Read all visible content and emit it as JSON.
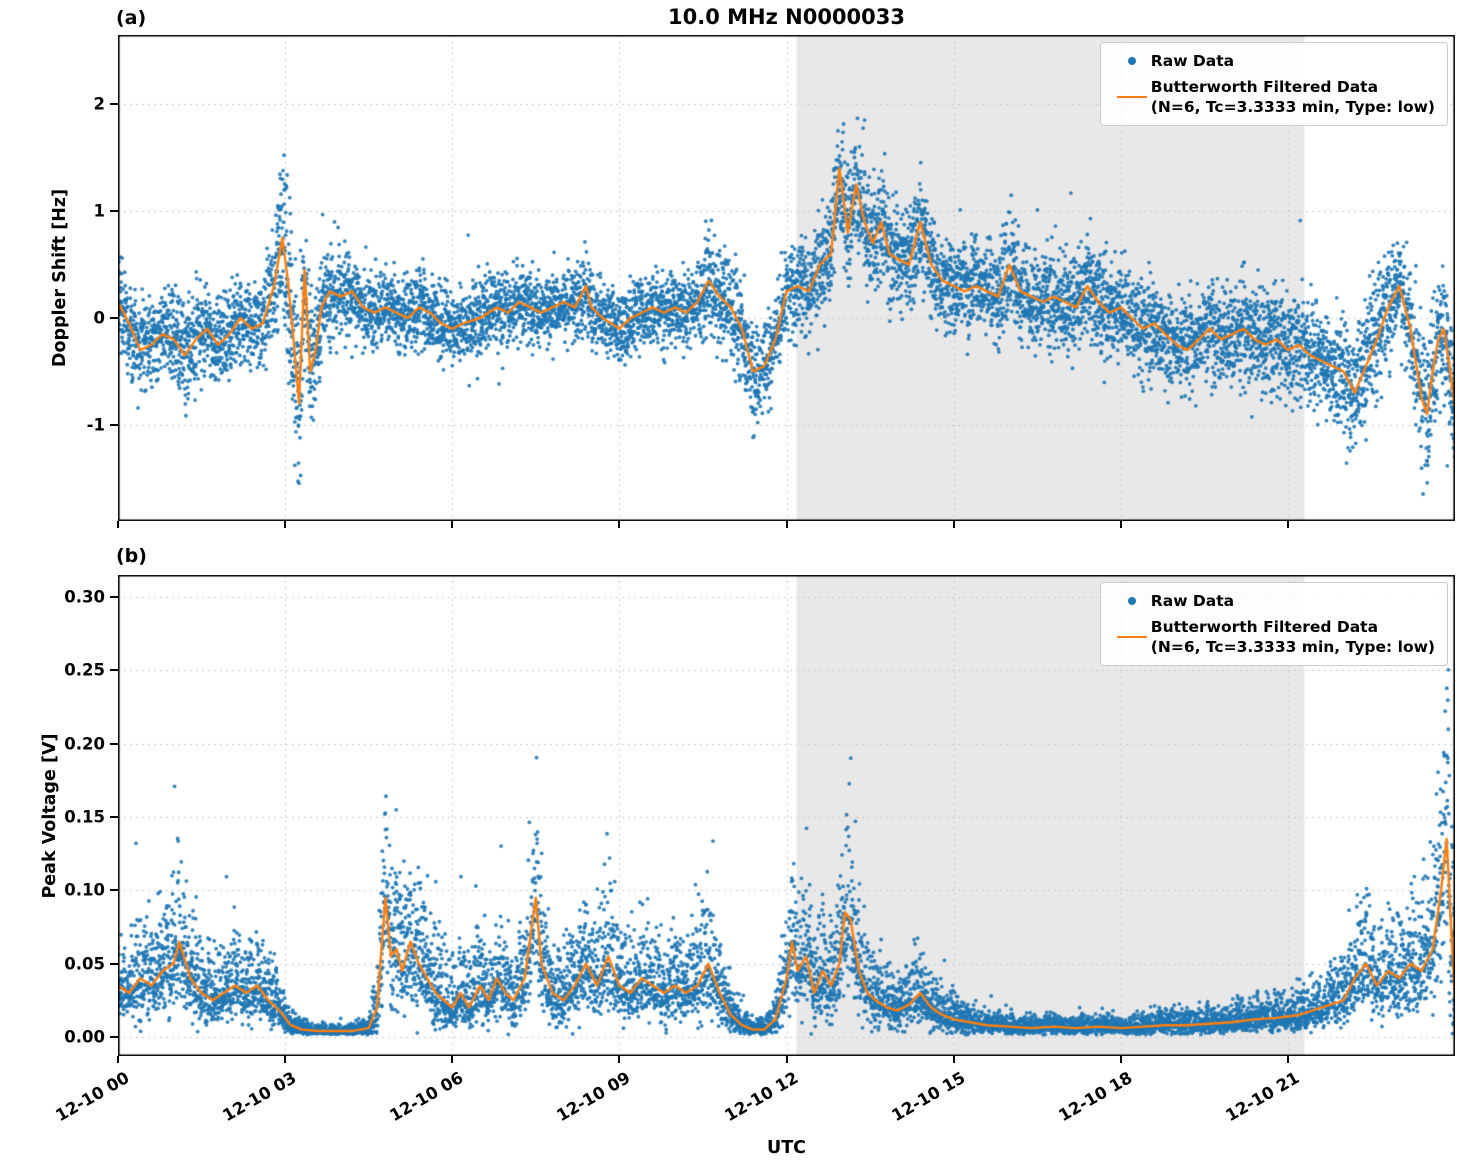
{
  "title": "10.0 MHz N0000033",
  "xlabel": "UTC",
  "legend": {
    "raw_label": "Raw Data",
    "filtered_label": "Butterworth Filtered Data",
    "filtered_sublabel": "(N=6, Tc=3.3333 min, Type: low)"
  },
  "colors": {
    "raw": "#1f77b4",
    "filtered": "#ff7f0e",
    "shade": "#e8e8e8",
    "grid": "#c9c9c9"
  },
  "x_axis": {
    "label": "UTC",
    "range_hours": [
      0,
      24
    ],
    "tick_hours": [
      0,
      3,
      6,
      9,
      12,
      15,
      18,
      21
    ],
    "tick_labels": [
      "12-10 00",
      "12-10 03",
      "12-10 06",
      "12-10 09",
      "12-10 12",
      "12-10 15",
      "12-10 18",
      "12-10 21"
    ]
  },
  "shade_region": {
    "x_start_hour": 12.18,
    "x_end_hour": 21.3
  },
  "chart_data": [
    {
      "type": "scatter",
      "panel_label": "(a)",
      "ylabel": "Doppler Shift [Hz]",
      "ylim": [
        -1.9,
        2.65
      ],
      "y_tick_values": [
        -1,
        0,
        1,
        2
      ],
      "y_tick_labels": [
        "-1",
        "0",
        "1",
        "2"
      ],
      "grid": true,
      "legend_position": "upper right",
      "series_names": [
        "Raw Data",
        "Butterworth Filtered Data"
      ],
      "skew_up": 1.0,
      "skew_down": 1.0,
      "raw_clamp": [
        -1.82,
        2.56
      ],
      "filtered_points": [
        [
          0,
          0.15,
          0.35
        ],
        [
          0.2,
          -0.05,
          0.4
        ],
        [
          0.4,
          -0.3,
          0.4
        ],
        [
          0.6,
          -0.25,
          0.35
        ],
        [
          0.8,
          -0.15,
          0.35
        ],
        [
          1,
          -0.2,
          0.4
        ],
        [
          1.2,
          -0.35,
          0.45
        ],
        [
          1.4,
          -0.2,
          0.4
        ],
        [
          1.6,
          -0.1,
          0.35
        ],
        [
          1.8,
          -0.25,
          0.4
        ],
        [
          2,
          -0.15,
          0.35
        ],
        [
          2.2,
          0,
          0.3
        ],
        [
          2.4,
          -0.1,
          0.3
        ],
        [
          2.6,
          -0.05,
          0.35
        ],
        [
          2.8,
          0.3,
          0.5
        ],
        [
          2.95,
          0.75,
          0.8
        ],
        [
          3.05,
          0.35,
          0.9
        ],
        [
          3.15,
          -0.2,
          0.9
        ],
        [
          3.25,
          -0.8,
          0.8
        ],
        [
          3.35,
          0.45,
          0.7
        ],
        [
          3.45,
          -0.5,
          0.6
        ],
        [
          3.55,
          -0.3,
          0.5
        ],
        [
          3.65,
          0.1,
          0.45
        ],
        [
          3.8,
          0.25,
          0.4
        ],
        [
          4,
          0.2,
          0.35
        ],
        [
          4.2,
          0.25,
          0.3
        ],
        [
          4.4,
          0.1,
          0.3
        ],
        [
          4.6,
          0.05,
          0.3
        ],
        [
          4.8,
          0.1,
          0.3
        ],
        [
          5,
          0.05,
          0.3
        ],
        [
          5.2,
          0,
          0.3
        ],
        [
          5.4,
          0.1,
          0.3
        ],
        [
          5.6,
          0.05,
          0.3
        ],
        [
          5.8,
          -0.05,
          0.3
        ],
        [
          6,
          -0.1,
          0.3
        ],
        [
          6.2,
          -0.05,
          0.3
        ],
        [
          6.5,
          0,
          0.3
        ],
        [
          6.8,
          0.1,
          0.3
        ],
        [
          7,
          0.05,
          0.3
        ],
        [
          7.2,
          0.15,
          0.3
        ],
        [
          7.4,
          0.1,
          0.3
        ],
        [
          7.6,
          0.05,
          0.3
        ],
        [
          7.8,
          0.1,
          0.3
        ],
        [
          8,
          0.15,
          0.3
        ],
        [
          8.2,
          0.1,
          0.3
        ],
        [
          8.4,
          0.3,
          0.35
        ],
        [
          8.5,
          0.1,
          0.3
        ],
        [
          8.7,
          0,
          0.3
        ],
        [
          9,
          -0.1,
          0.3
        ],
        [
          9.2,
          0,
          0.3
        ],
        [
          9.4,
          0.05,
          0.3
        ],
        [
          9.6,
          0.1,
          0.3
        ],
        [
          9.8,
          0.05,
          0.3
        ],
        [
          10,
          0.1,
          0.3
        ],
        [
          10.2,
          0.05,
          0.3
        ],
        [
          10.4,
          0.15,
          0.35
        ],
        [
          10.6,
          0.35,
          0.5
        ],
        [
          10.8,
          0.2,
          0.45
        ],
        [
          11,
          0.1,
          0.4
        ],
        [
          11.2,
          -0.1,
          0.4
        ],
        [
          11.4,
          -0.5,
          0.45
        ],
        [
          11.6,
          -0.45,
          0.4
        ],
        [
          11.8,
          -0.2,
          0.35
        ],
        [
          12,
          0.25,
          0.35
        ],
        [
          12.2,
          0.3,
          0.4
        ],
        [
          12.4,
          0.25,
          0.4
        ],
        [
          12.6,
          0.5,
          0.45
        ],
        [
          12.8,
          0.6,
          0.5
        ],
        [
          12.95,
          1.4,
          0.45
        ],
        [
          13.1,
          0.8,
          0.5
        ],
        [
          13.25,
          1.25,
          0.5
        ],
        [
          13.4,
          0.9,
          0.5
        ],
        [
          13.55,
          0.7,
          0.45
        ],
        [
          13.7,
          0.9,
          0.45
        ],
        [
          13.85,
          0.6,
          0.4
        ],
        [
          14,
          0.55,
          0.4
        ],
        [
          14.2,
          0.5,
          0.4
        ],
        [
          14.4,
          0.9,
          0.4
        ],
        [
          14.6,
          0.5,
          0.4
        ],
        [
          14.8,
          0.35,
          0.4
        ],
        [
          15,
          0.3,
          0.4
        ],
        [
          15.2,
          0.25,
          0.4
        ],
        [
          15.4,
          0.3,
          0.4
        ],
        [
          15.6,
          0.25,
          0.4
        ],
        [
          15.8,
          0.2,
          0.4
        ],
        [
          16,
          0.5,
          0.45
        ],
        [
          16.2,
          0.25,
          0.4
        ],
        [
          16.4,
          0.2,
          0.4
        ],
        [
          16.6,
          0.15,
          0.4
        ],
        [
          16.8,
          0.2,
          0.4
        ],
        [
          17,
          0.15,
          0.4
        ],
        [
          17.2,
          0.1,
          0.4
        ],
        [
          17.4,
          0.3,
          0.4
        ],
        [
          17.6,
          0.15,
          0.4
        ],
        [
          17.8,
          0.05,
          0.4
        ],
        [
          18,
          0.1,
          0.4
        ],
        [
          18.2,
          0,
          0.4
        ],
        [
          18.4,
          -0.1,
          0.4
        ],
        [
          18.6,
          -0.05,
          0.4
        ],
        [
          18.8,
          -0.15,
          0.4
        ],
        [
          19,
          -0.25,
          0.4
        ],
        [
          19.2,
          -0.3,
          0.4
        ],
        [
          19.4,
          -0.2,
          0.4
        ],
        [
          19.6,
          -0.1,
          0.4
        ],
        [
          19.8,
          -0.2,
          0.4
        ],
        [
          20,
          -0.15,
          0.4
        ],
        [
          20.2,
          -0.1,
          0.4
        ],
        [
          20.4,
          -0.2,
          0.4
        ],
        [
          20.6,
          -0.25,
          0.4
        ],
        [
          20.8,
          -0.2,
          0.4
        ],
        [
          21,
          -0.3,
          0.45
        ],
        [
          21.2,
          -0.25,
          0.45
        ],
        [
          21.4,
          -0.35,
          0.45
        ],
        [
          21.6,
          -0.4,
          0.45
        ],
        [
          21.8,
          -0.45,
          0.45
        ],
        [
          22,
          -0.5,
          0.5
        ],
        [
          22.2,
          -0.7,
          0.55
        ],
        [
          22.4,
          -0.45,
          0.5
        ],
        [
          22.6,
          -0.2,
          0.45
        ],
        [
          22.8,
          0.1,
          0.4
        ],
        [
          23,
          0.3,
          0.4
        ],
        [
          23.2,
          -0.1,
          0.5
        ],
        [
          23.4,
          -0.75,
          0.6
        ],
        [
          23.5,
          -0.9,
          0.65
        ],
        [
          23.6,
          -0.5,
          0.55
        ],
        [
          23.7,
          -0.2,
          0.5
        ],
        [
          23.8,
          -0.1,
          0.45
        ],
        [
          23.9,
          -0.45,
          0.5
        ],
        [
          24,
          -0.85,
          0.55
        ]
      ]
    },
    {
      "type": "scatter",
      "panel_label": "(b)",
      "ylabel": "Peak Voltage [V]",
      "ylim": [
        -0.013,
        0.315
      ],
      "y_tick_values": [
        0,
        0.05,
        0.1,
        0.15,
        0.2,
        0.25,
        0.3
      ],
      "y_tick_labels": [
        "0.00",
        "0.05",
        "0.10",
        "0.15",
        "0.20",
        "0.25",
        "0.30"
      ],
      "grid": true,
      "legend_position": "upper right",
      "series_names": [
        "Raw Data",
        "Butterworth Filtered Data"
      ],
      "skew_up": 1.45,
      "skew_down": 0.75,
      "raw_clamp": [
        0.0015,
        0.308
      ],
      "filtered_points": [
        [
          0,
          0.035,
          0.025
        ],
        [
          0.2,
          0.03,
          0.022
        ],
        [
          0.4,
          0.04,
          0.028
        ],
        [
          0.6,
          0.035,
          0.025
        ],
        [
          0.8,
          0.045,
          0.032
        ],
        [
          1,
          0.05,
          0.036
        ],
        [
          1.1,
          0.065,
          0.045
        ],
        [
          1.3,
          0.04,
          0.03
        ],
        [
          1.5,
          0.03,
          0.025
        ],
        [
          1.7,
          0.025,
          0.02
        ],
        [
          1.9,
          0.03,
          0.022
        ],
        [
          2.1,
          0.035,
          0.025
        ],
        [
          2.3,
          0.03,
          0.022
        ],
        [
          2.5,
          0.035,
          0.025
        ],
        [
          2.7,
          0.025,
          0.02
        ],
        [
          2.9,
          0.018,
          0.015
        ],
        [
          3.1,
          0.008,
          0.006
        ],
        [
          3.3,
          0.005,
          0.004
        ],
        [
          3.6,
          0.004,
          0.003
        ],
        [
          3.9,
          0.004,
          0.003
        ],
        [
          4.2,
          0.004,
          0.003
        ],
        [
          4.5,
          0.006,
          0.005
        ],
        [
          4.65,
          0.02,
          0.025
        ],
        [
          4.8,
          0.095,
          0.05
        ],
        [
          4.9,
          0.055,
          0.045
        ],
        [
          5,
          0.06,
          0.042
        ],
        [
          5.1,
          0.045,
          0.038
        ],
        [
          5.25,
          0.065,
          0.04
        ],
        [
          5.4,
          0.05,
          0.038
        ],
        [
          5.55,
          0.04,
          0.033
        ],
        [
          5.7,
          0.03,
          0.028
        ],
        [
          5.85,
          0.025,
          0.022
        ],
        [
          6,
          0.02,
          0.018
        ],
        [
          6.15,
          0.03,
          0.024
        ],
        [
          6.3,
          0.02,
          0.018
        ],
        [
          6.5,
          0.035,
          0.028
        ],
        [
          6.65,
          0.025,
          0.022
        ],
        [
          6.8,
          0.04,
          0.028
        ],
        [
          6.95,
          0.03,
          0.024
        ],
        [
          7.1,
          0.025,
          0.02
        ],
        [
          7.3,
          0.04,
          0.03
        ],
        [
          7.5,
          0.095,
          0.055
        ],
        [
          7.6,
          0.05,
          0.04
        ],
        [
          7.8,
          0.03,
          0.026
        ],
        [
          8,
          0.025,
          0.022
        ],
        [
          8.2,
          0.035,
          0.026
        ],
        [
          8.4,
          0.05,
          0.034
        ],
        [
          8.6,
          0.035,
          0.026
        ],
        [
          8.8,
          0.055,
          0.038
        ],
        [
          9,
          0.035,
          0.026
        ],
        [
          9.2,
          0.03,
          0.024
        ],
        [
          9.4,
          0.04,
          0.03
        ],
        [
          9.6,
          0.035,
          0.026
        ],
        [
          9.8,
          0.03,
          0.024
        ],
        [
          10,
          0.035,
          0.026
        ],
        [
          10.2,
          0.03,
          0.024
        ],
        [
          10.4,
          0.035,
          0.026
        ],
        [
          10.6,
          0.05,
          0.036
        ],
        [
          10.8,
          0.03,
          0.024
        ],
        [
          11,
          0.015,
          0.013
        ],
        [
          11.2,
          0.008,
          0.007
        ],
        [
          11.4,
          0.005,
          0.004
        ],
        [
          11.6,
          0.005,
          0.004
        ],
        [
          11.8,
          0.012,
          0.01
        ],
        [
          12,
          0.04,
          0.03
        ],
        [
          12.1,
          0.065,
          0.042
        ],
        [
          12.2,
          0.045,
          0.034
        ],
        [
          12.35,
          0.055,
          0.038
        ],
        [
          12.5,
          0.03,
          0.024
        ],
        [
          12.65,
          0.045,
          0.034
        ],
        [
          12.8,
          0.035,
          0.028
        ],
        [
          12.95,
          0.05,
          0.038
        ],
        [
          13.05,
          0.085,
          0.055
        ],
        [
          13.15,
          0.08,
          0.05
        ],
        [
          13.3,
          0.045,
          0.034
        ],
        [
          13.45,
          0.03,
          0.024
        ],
        [
          13.6,
          0.025,
          0.02
        ],
        [
          13.8,
          0.02,
          0.016
        ],
        [
          14,
          0.018,
          0.014
        ],
        [
          14.2,
          0.022,
          0.016
        ],
        [
          14.4,
          0.03,
          0.022
        ],
        [
          14.6,
          0.02,
          0.016
        ],
        [
          14.8,
          0.015,
          0.012
        ],
        [
          15,
          0.012,
          0.01
        ],
        [
          15.3,
          0.01,
          0.008
        ],
        [
          15.6,
          0.008,
          0.007
        ],
        [
          16,
          0.007,
          0.006
        ],
        [
          16.4,
          0.006,
          0.005
        ],
        [
          16.8,
          0.007,
          0.006
        ],
        [
          17.2,
          0.006,
          0.005
        ],
        [
          17.6,
          0.007,
          0.006
        ],
        [
          18,
          0.006,
          0.005
        ],
        [
          18.4,
          0.007,
          0.006
        ],
        [
          18.8,
          0.008,
          0.007
        ],
        [
          19.2,
          0.008,
          0.007
        ],
        [
          19.6,
          0.009,
          0.008
        ],
        [
          20,
          0.01,
          0.008
        ],
        [
          20.4,
          0.012,
          0.01
        ],
        [
          20.8,
          0.013,
          0.011
        ],
        [
          21.2,
          0.015,
          0.012
        ],
        [
          21.6,
          0.02,
          0.015
        ],
        [
          22,
          0.025,
          0.02
        ],
        [
          22.2,
          0.04,
          0.028
        ],
        [
          22.4,
          0.05,
          0.034
        ],
        [
          22.6,
          0.035,
          0.024
        ],
        [
          22.8,
          0.045,
          0.03
        ],
        [
          23,
          0.04,
          0.028
        ],
        [
          23.2,
          0.05,
          0.034
        ],
        [
          23.4,
          0.045,
          0.03
        ],
        [
          23.6,
          0.06,
          0.04
        ],
        [
          23.75,
          0.1,
          0.06
        ],
        [
          23.85,
          0.135,
          0.08
        ],
        [
          23.95,
          0.06,
          0.1
        ],
        [
          24,
          0.025,
          0.04
        ]
      ]
    }
  ]
}
